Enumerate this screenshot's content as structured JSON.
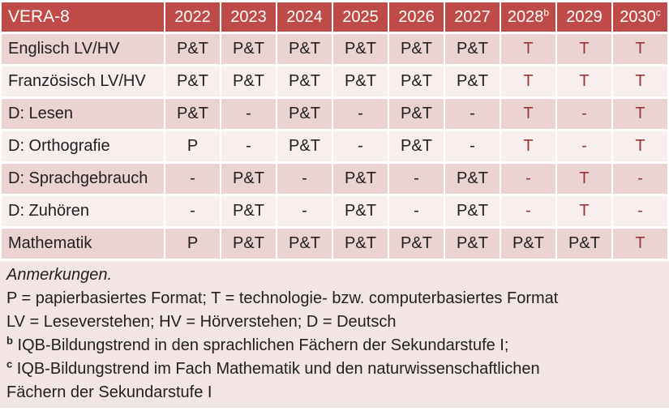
{
  "table": {
    "title": "VERA-8",
    "columns": [
      {
        "label": "2022",
        "sup": ""
      },
      {
        "label": "2023",
        "sup": ""
      },
      {
        "label": "2024",
        "sup": ""
      },
      {
        "label": "2025",
        "sup": ""
      },
      {
        "label": "2026",
        "sup": ""
      },
      {
        "label": "2027",
        "sup": ""
      },
      {
        "label": "2028",
        "sup": "b"
      },
      {
        "label": "2029",
        "sup": ""
      },
      {
        "label": "2030",
        "sup": "c"
      }
    ],
    "rows": [
      {
        "label": "Englisch LV/HV",
        "cells": [
          {
            "v": "P&T",
            "red": false
          },
          {
            "v": "P&T",
            "red": false
          },
          {
            "v": "P&T",
            "red": false
          },
          {
            "v": "P&T",
            "red": false
          },
          {
            "v": "P&T",
            "red": false
          },
          {
            "v": "P&T",
            "red": false
          },
          {
            "v": "T",
            "red": true
          },
          {
            "v": "T",
            "red": true
          },
          {
            "v": "T",
            "red": true
          }
        ]
      },
      {
        "label": "Französisch LV/HV",
        "cells": [
          {
            "v": "P&T",
            "red": false
          },
          {
            "v": "P&T",
            "red": false
          },
          {
            "v": "P&T",
            "red": false
          },
          {
            "v": "P&T",
            "red": false
          },
          {
            "v": "P&T",
            "red": false
          },
          {
            "v": "P&T",
            "red": false
          },
          {
            "v": "T",
            "red": true
          },
          {
            "v": "T",
            "red": true
          },
          {
            "v": "T",
            "red": true
          }
        ]
      },
      {
        "label": "D: Lesen",
        "cells": [
          {
            "v": "P&T",
            "red": false
          },
          {
            "v": "-",
            "red": false
          },
          {
            "v": "P&T",
            "red": false
          },
          {
            "v": "-",
            "red": false
          },
          {
            "v": "P&T",
            "red": false
          },
          {
            "v": "-",
            "red": false
          },
          {
            "v": "T",
            "red": true
          },
          {
            "v": "-",
            "red": true
          },
          {
            "v": "T",
            "red": true
          }
        ]
      },
      {
        "label": "D: Orthografie",
        "cells": [
          {
            "v": "P",
            "red": false
          },
          {
            "v": "-",
            "red": false
          },
          {
            "v": "P&T",
            "red": false
          },
          {
            "v": "-",
            "red": false
          },
          {
            "v": "P&T",
            "red": false
          },
          {
            "v": "-",
            "red": false
          },
          {
            "v": "T",
            "red": true
          },
          {
            "v": "-",
            "red": true
          },
          {
            "v": "T",
            "red": true
          }
        ]
      },
      {
        "label": "D: Sprachgebrauch",
        "cells": [
          {
            "v": "-",
            "red": false
          },
          {
            "v": "P&T",
            "red": false
          },
          {
            "v": "-",
            "red": false
          },
          {
            "v": "P&T",
            "red": false
          },
          {
            "v": "-",
            "red": false
          },
          {
            "v": "P&T",
            "red": false
          },
          {
            "v": "-",
            "red": true
          },
          {
            "v": "T",
            "red": true
          },
          {
            "v": "-",
            "red": true
          }
        ]
      },
      {
        "label": "D: Zuhören",
        "cells": [
          {
            "v": "-",
            "red": false
          },
          {
            "v": "P&T",
            "red": false
          },
          {
            "v": "-",
            "red": false
          },
          {
            "v": "P&T",
            "red": false
          },
          {
            "v": "-",
            "red": false
          },
          {
            "v": "P&T",
            "red": false
          },
          {
            "v": "-",
            "red": true
          },
          {
            "v": "T",
            "red": true
          },
          {
            "v": "-",
            "red": true
          }
        ]
      },
      {
        "label": "Mathematik",
        "cells": [
          {
            "v": "P",
            "red": false
          },
          {
            "v": "P&T",
            "red": false
          },
          {
            "v": "P&T",
            "red": false
          },
          {
            "v": "P&T",
            "red": false
          },
          {
            "v": "P&T",
            "red": false
          },
          {
            "v": "P&T",
            "red": false
          },
          {
            "v": "P&T",
            "red": false
          },
          {
            "v": "P&T",
            "red": false
          },
          {
            "v": "T",
            "red": true
          }
        ]
      }
    ]
  },
  "notes": {
    "heading": "Anmerkungen.",
    "lines": [
      {
        "sup": "",
        "text": "P = papierbasiertes Format; T = technologie- bzw. computerbasiertes Format"
      },
      {
        "sup": "",
        "text": "LV = Leseverstehen; HV = Hörverstehen; D = Deutsch"
      },
      {
        "sup": "b",
        "text": "IQB-Bildungstrend in den sprachlichen Fächern der Sekundarstufe I;"
      },
      {
        "sup": "c",
        "text": "IQB-Bildungstrend im Fach Mathematik und den naturwissenschaftlichen\nFächern der Sekundarstufe I"
      }
    ]
  },
  "colors": {
    "header_bg": "#BE4B48",
    "band_dark": "#EBD3D1",
    "band_light": "#F7EEED",
    "notes_bg": "#F2E5E3",
    "tech_red": "#963735",
    "text": "#1F1F1F"
  }
}
